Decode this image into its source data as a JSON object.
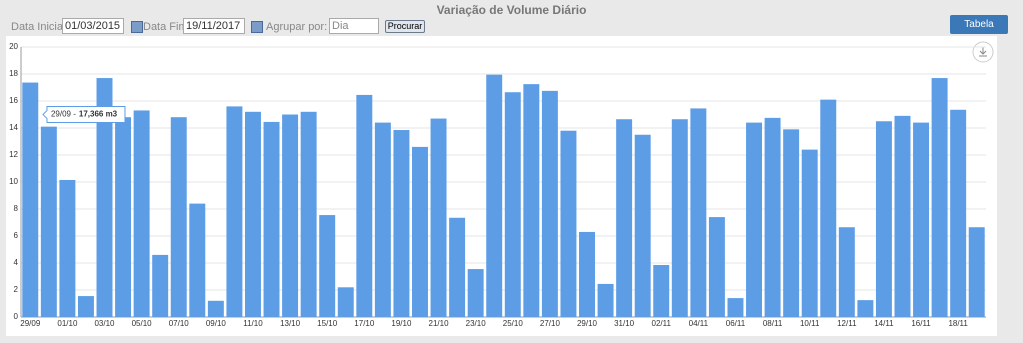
{
  "header": {
    "title": "Variação de Volume Diário",
    "start_label": "Data Inicial",
    "start_value": "01/03/2015",
    "end_label": "Data Fim",
    "end_value": "19/11/2017",
    "group_label": "Agrupar por:",
    "group_value": "Dia",
    "search_button": "Procurar",
    "table_button": "Tabela"
  },
  "chart_data": {
    "type": "bar",
    "color": "#5d9de6",
    "categories": [
      "29/09",
      null,
      "01/10",
      null,
      "03/10",
      null,
      "05/10",
      null,
      "07/10",
      null,
      "09/10",
      null,
      "11/10",
      null,
      "13/10",
      null,
      "15/10",
      null,
      "17/10",
      null,
      "19/10",
      null,
      "21/10",
      null,
      "23/10",
      null,
      "25/10",
      null,
      "27/10",
      null,
      "29/10",
      null,
      "31/10",
      null,
      "02/11",
      null,
      "04/11",
      null,
      "06/11",
      null,
      "08/11",
      null,
      "10/11",
      null,
      "12/11",
      null,
      "14/11",
      null,
      "16/11",
      null,
      "18/11",
      null
    ],
    "values": [
      17.366,
      14.1,
      10.15,
      1.55,
      17.7,
      14.8,
      15.3,
      4.6,
      14.8,
      8.4,
      1.2,
      15.6,
      15.2,
      14.45,
      15.0,
      15.2,
      7.55,
      2.2,
      16.45,
      14.4,
      13.85,
      12.6,
      14.7,
      7.35,
      3.55,
      17.95,
      16.65,
      17.25,
      16.75,
      13.8,
      6.3,
      2.45,
      14.65,
      13.5,
      3.85,
      14.65,
      15.45,
      7.4,
      1.4,
      14.4,
      14.75,
      13.9,
      12.4,
      16.1,
      6.65,
      1.25,
      14.5,
      14.9,
      14.4,
      17.7,
      15.35,
      6.65
    ],
    "ylim": [
      0,
      20
    ],
    "yticks": [
      0,
      2,
      4,
      6,
      8,
      10,
      12,
      14,
      16,
      18,
      20
    ],
    "grid": true,
    "tooltip": {
      "category": "29/09 -",
      "value": "17,366 m3"
    }
  }
}
